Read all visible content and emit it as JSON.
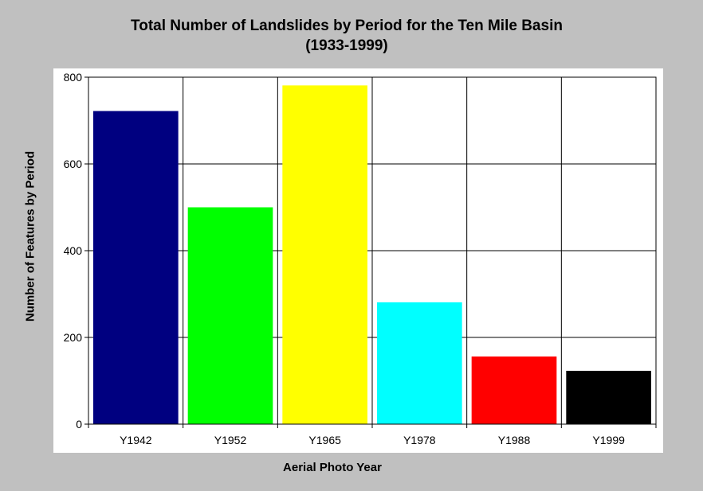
{
  "chart_data": {
    "type": "bar",
    "title_line1": "Total Number of Landslides by Period for the Ten Mile Basin",
    "title_line2": "(1933-1999)",
    "xlabel": "Aerial Photo Year",
    "ylabel": "Number of Features by Period",
    "categories": [
      "Y1942",
      "Y1952",
      "Y1965",
      "Y1978",
      "Y1988",
      "Y1999"
    ],
    "values": [
      722,
      500,
      781,
      281,
      156,
      123
    ],
    "colors": [
      "#000080",
      "#00ff00",
      "#ffff00",
      "#00ffff",
      "#ff0000",
      "#000000"
    ],
    "ylim": [
      0,
      800
    ],
    "yticks": [
      "0",
      "200",
      "400",
      "600",
      "800"
    ],
    "grid": true,
    "legend": "none"
  }
}
